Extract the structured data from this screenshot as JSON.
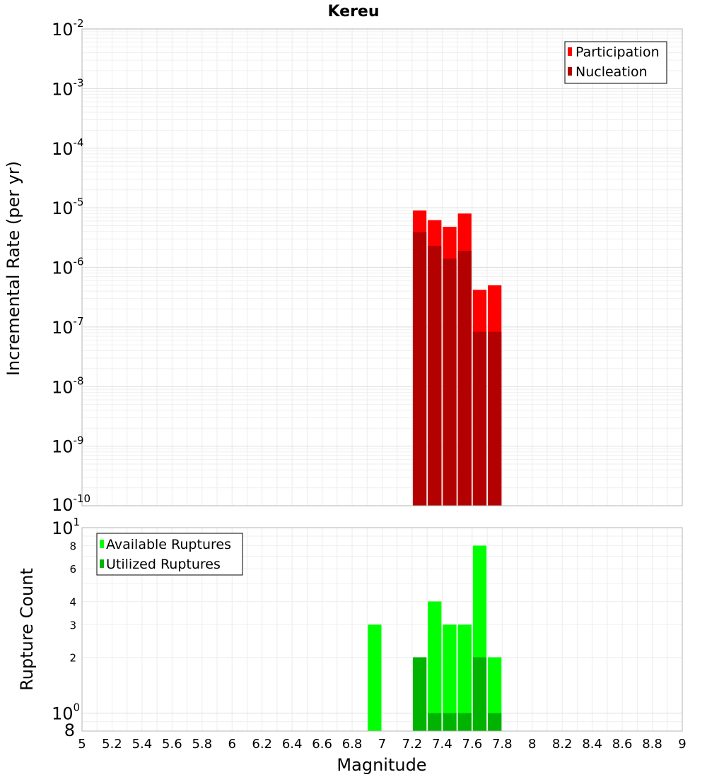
{
  "chart_data": [
    {
      "type": "bar",
      "title": "Kereu",
      "ylabel": "Incremental Rate (per yr)",
      "yscale": "log",
      "ylim_exponents": [
        -10,
        -2
      ],
      "xlim": [
        5,
        9
      ],
      "legend_position": "top-right",
      "bin_width": 0.1,
      "x": [
        7.25,
        7.35,
        7.45,
        7.55,
        7.65,
        7.75
      ],
      "series": [
        {
          "name": "Participation",
          "color": "#ff0000",
          "values": [
            9e-06,
            6.2e-06,
            4.8e-06,
            8e-06,
            4.2e-07,
            5e-07
          ]
        },
        {
          "name": "Nucleation",
          "color": "#b30000",
          "values": [
            3.9e-06,
            2.3e-06,
            1.4e-06,
            1.9e-06,
            8.3e-08,
            8.3e-08
          ]
        }
      ]
    },
    {
      "type": "bar",
      "ylabel": "Rupture Count",
      "xlabel": "Magnitude",
      "yscale": "log",
      "ylim": [
        0.8,
        10
      ],
      "xlim": [
        5,
        9
      ],
      "legend_position": "top-left",
      "bin_width": 0.1,
      "x": [
        6.95,
        7.25,
        7.35,
        7.45,
        7.55,
        7.65,
        7.75
      ],
      "series": [
        {
          "name": "Available Ruptures",
          "color": "#00ff00",
          "values": [
            3,
            2,
            4,
            3,
            3,
            8,
            2
          ]
        },
        {
          "name": "Utilized Ruptures",
          "color": "#00b300",
          "values": [
            0,
            2,
            1,
            1,
            1,
            2,
            1
          ]
        }
      ]
    }
  ],
  "x_tick_labels": [
    "5",
    "5.2",
    "5.4",
    "5.6",
    "5.8",
    "6",
    "6.2",
    "6.4",
    "6.6",
    "6.8",
    "7",
    "7.2",
    "7.4",
    "7.6",
    "7.8",
    "8",
    "8.2",
    "8.4",
    "8.6",
    "8.8",
    "9"
  ],
  "top_axis": {
    "decade_base": "10",
    "decade_exponents": [
      "-2",
      "-3",
      "-4",
      "-5",
      "-6",
      "-7",
      "-8",
      "-9",
      "-10"
    ]
  },
  "bottom_axis": {
    "decade_labels": [
      {
        "base": "10",
        "exp": "1"
      },
      {
        "base": "10",
        "exp": "0"
      }
    ],
    "minor_labels": [
      "8",
      "6",
      "4",
      "3",
      "2"
    ],
    "bottom_label": "8"
  }
}
